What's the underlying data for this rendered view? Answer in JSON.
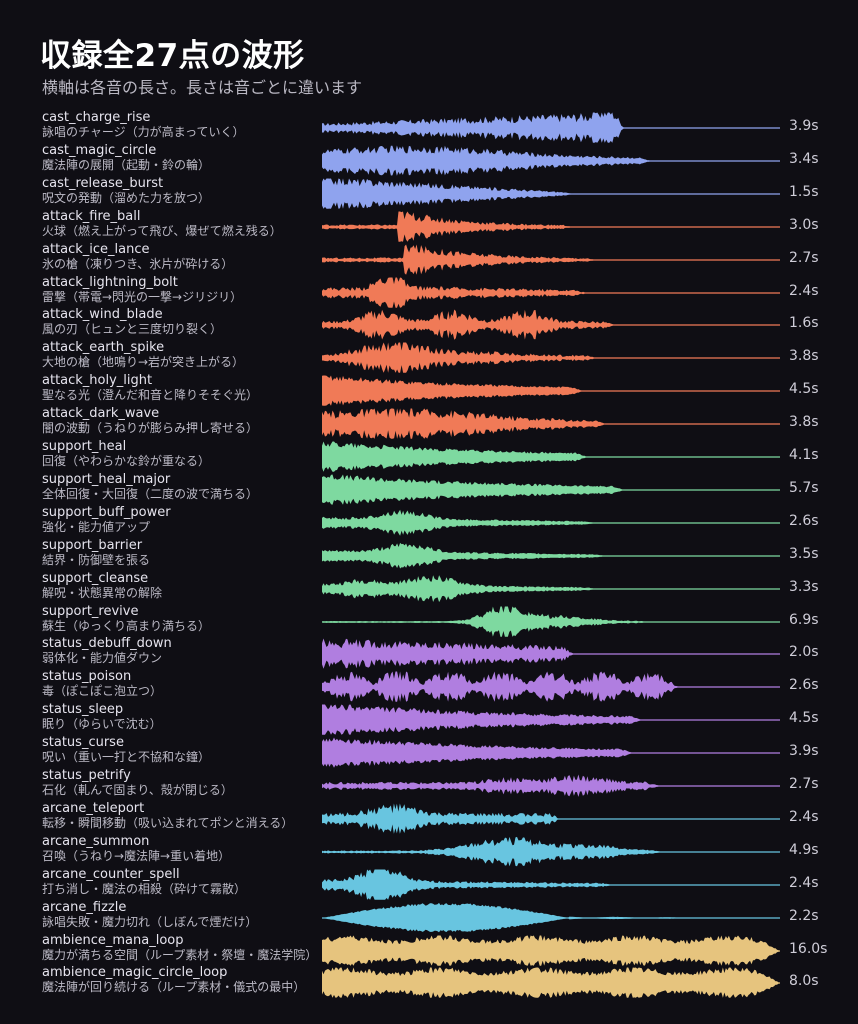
{
  "title": "収録全27点の波形",
  "subtitle": "横軸は各音の長さ。長さは音ごとに違います",
  "colors": {
    "cast": "#8fa3ee",
    "attack": "#f07a57",
    "support": "#7ed9a0",
    "status": "#b07ee0",
    "arcane": "#68c5e0",
    "ambience": "#e6c47e"
  },
  "chart_data": {
    "type": "waveform",
    "unit": "s",
    "series": [
      {
        "name": "cast_charge_rise",
        "desc": "詠唱のチャージ（力が高まっていく）",
        "duration": 3.9,
        "duration_label": "3.9s",
        "group": "cast"
      },
      {
        "name": "cast_magic_circle",
        "desc": "魔法陣の展開（起動・鈴の輪）",
        "duration": 3.4,
        "duration_label": "3.4s",
        "group": "cast"
      },
      {
        "name": "cast_release_burst",
        "desc": "呪文の発動（溜めた力を放つ）",
        "duration": 1.5,
        "duration_label": "1.5s",
        "group": "cast"
      },
      {
        "name": "attack_fire_ball",
        "desc": "火球（燃え上がって飛び、爆ぜて燃え残る）",
        "duration": 3.0,
        "duration_label": "3.0s",
        "group": "attack"
      },
      {
        "name": "attack_ice_lance",
        "desc": "氷の槍（凍りつき、氷片が砕ける）",
        "duration": 2.7,
        "duration_label": "2.7s",
        "group": "attack"
      },
      {
        "name": "attack_lightning_bolt",
        "desc": "雷撃（帯電→閃光の一撃→ジリジリ）",
        "duration": 2.4,
        "duration_label": "2.4s",
        "group": "attack"
      },
      {
        "name": "attack_wind_blade",
        "desc": "風の刃（ヒュンと三度切り裂く）",
        "duration": 1.6,
        "duration_label": "1.6s",
        "group": "attack"
      },
      {
        "name": "attack_earth_spike",
        "desc": "大地の槍（地鳴り→岩が突き上がる）",
        "duration": 3.8,
        "duration_label": "3.8s",
        "group": "attack"
      },
      {
        "name": "attack_holy_light",
        "desc": "聖なる光（澄んだ和音と降りそそぐ光）",
        "duration": 4.5,
        "duration_label": "4.5s",
        "group": "attack"
      },
      {
        "name": "attack_dark_wave",
        "desc": "闇の波動（うねりが膨らみ押し寄せる）",
        "duration": 3.8,
        "duration_label": "3.8s",
        "group": "attack"
      },
      {
        "name": "support_heal",
        "desc": "回復（やわらかな鈴が重なる）",
        "duration": 4.1,
        "duration_label": "4.1s",
        "group": "support"
      },
      {
        "name": "support_heal_major",
        "desc": "全体回復・大回復（二度の波で満ちる）",
        "duration": 5.7,
        "duration_label": "5.7s",
        "group": "support"
      },
      {
        "name": "support_buff_power",
        "desc": "強化・能力値アップ",
        "duration": 2.6,
        "duration_label": "2.6s",
        "group": "support"
      },
      {
        "name": "support_barrier",
        "desc": "結界・防御壁を張る",
        "duration": 3.5,
        "duration_label": "3.5s",
        "group": "support"
      },
      {
        "name": "support_cleanse",
        "desc": "解呪・状態異常の解除",
        "duration": 3.3,
        "duration_label": "3.3s",
        "group": "support"
      },
      {
        "name": "support_revive",
        "desc": "蘇生（ゆっくり高まり満ちる）",
        "duration": 6.9,
        "duration_label": "6.9s",
        "group": "support"
      },
      {
        "name": "status_debuff_down",
        "desc": "弱体化・能力値ダウン",
        "duration": 2.0,
        "duration_label": "2.0s",
        "group": "status"
      },
      {
        "name": "status_poison",
        "desc": "毒（ぽこぽこ泡立つ）",
        "duration": 2.6,
        "duration_label": "2.6s",
        "group": "status"
      },
      {
        "name": "status_sleep",
        "desc": "眠り（ゆらいで沈む）",
        "duration": 4.5,
        "duration_label": "4.5s",
        "group": "status"
      },
      {
        "name": "status_curse",
        "desc": "呪い（重い一打と不協和な鐘）",
        "duration": 3.9,
        "duration_label": "3.9s",
        "group": "status"
      },
      {
        "name": "status_petrify",
        "desc": "石化（軋んで固まり、殻が閉じる）",
        "duration": 2.7,
        "duration_label": "2.7s",
        "group": "status"
      },
      {
        "name": "arcane_teleport",
        "desc": "転移・瞬間移動（吸い込まれてポンと消える）",
        "duration": 2.4,
        "duration_label": "2.4s",
        "group": "arcane"
      },
      {
        "name": "arcane_summon",
        "desc": "召喚（うねり→魔法陣→重い着地）",
        "duration": 4.9,
        "duration_label": "4.9s",
        "group": "arcane"
      },
      {
        "name": "arcane_counter_spell",
        "desc": "打ち消し・魔法の相殺（砕けて霧散）",
        "duration": 2.4,
        "duration_label": "2.4s",
        "group": "arcane"
      },
      {
        "name": "arcane_fizzle",
        "desc": "詠唱失敗・魔力切れ（しぼんで煙だけ）",
        "duration": 2.2,
        "duration_label": "2.2s",
        "group": "arcane"
      },
      {
        "name": "ambience_mana_loop",
        "desc": "魔力が満ちる空間（ループ素材・祭壇・魔法学院）",
        "duration": 16.0,
        "duration_label": "16.0s",
        "group": "ambience"
      },
      {
        "name": "ambience_magic_circle_loop",
        "desc": "魔法陣が回り続ける（ループ素材・儀式の最中）",
        "duration": 8.0,
        "duration_label": "8.0s",
        "group": "ambience"
      }
    ]
  }
}
